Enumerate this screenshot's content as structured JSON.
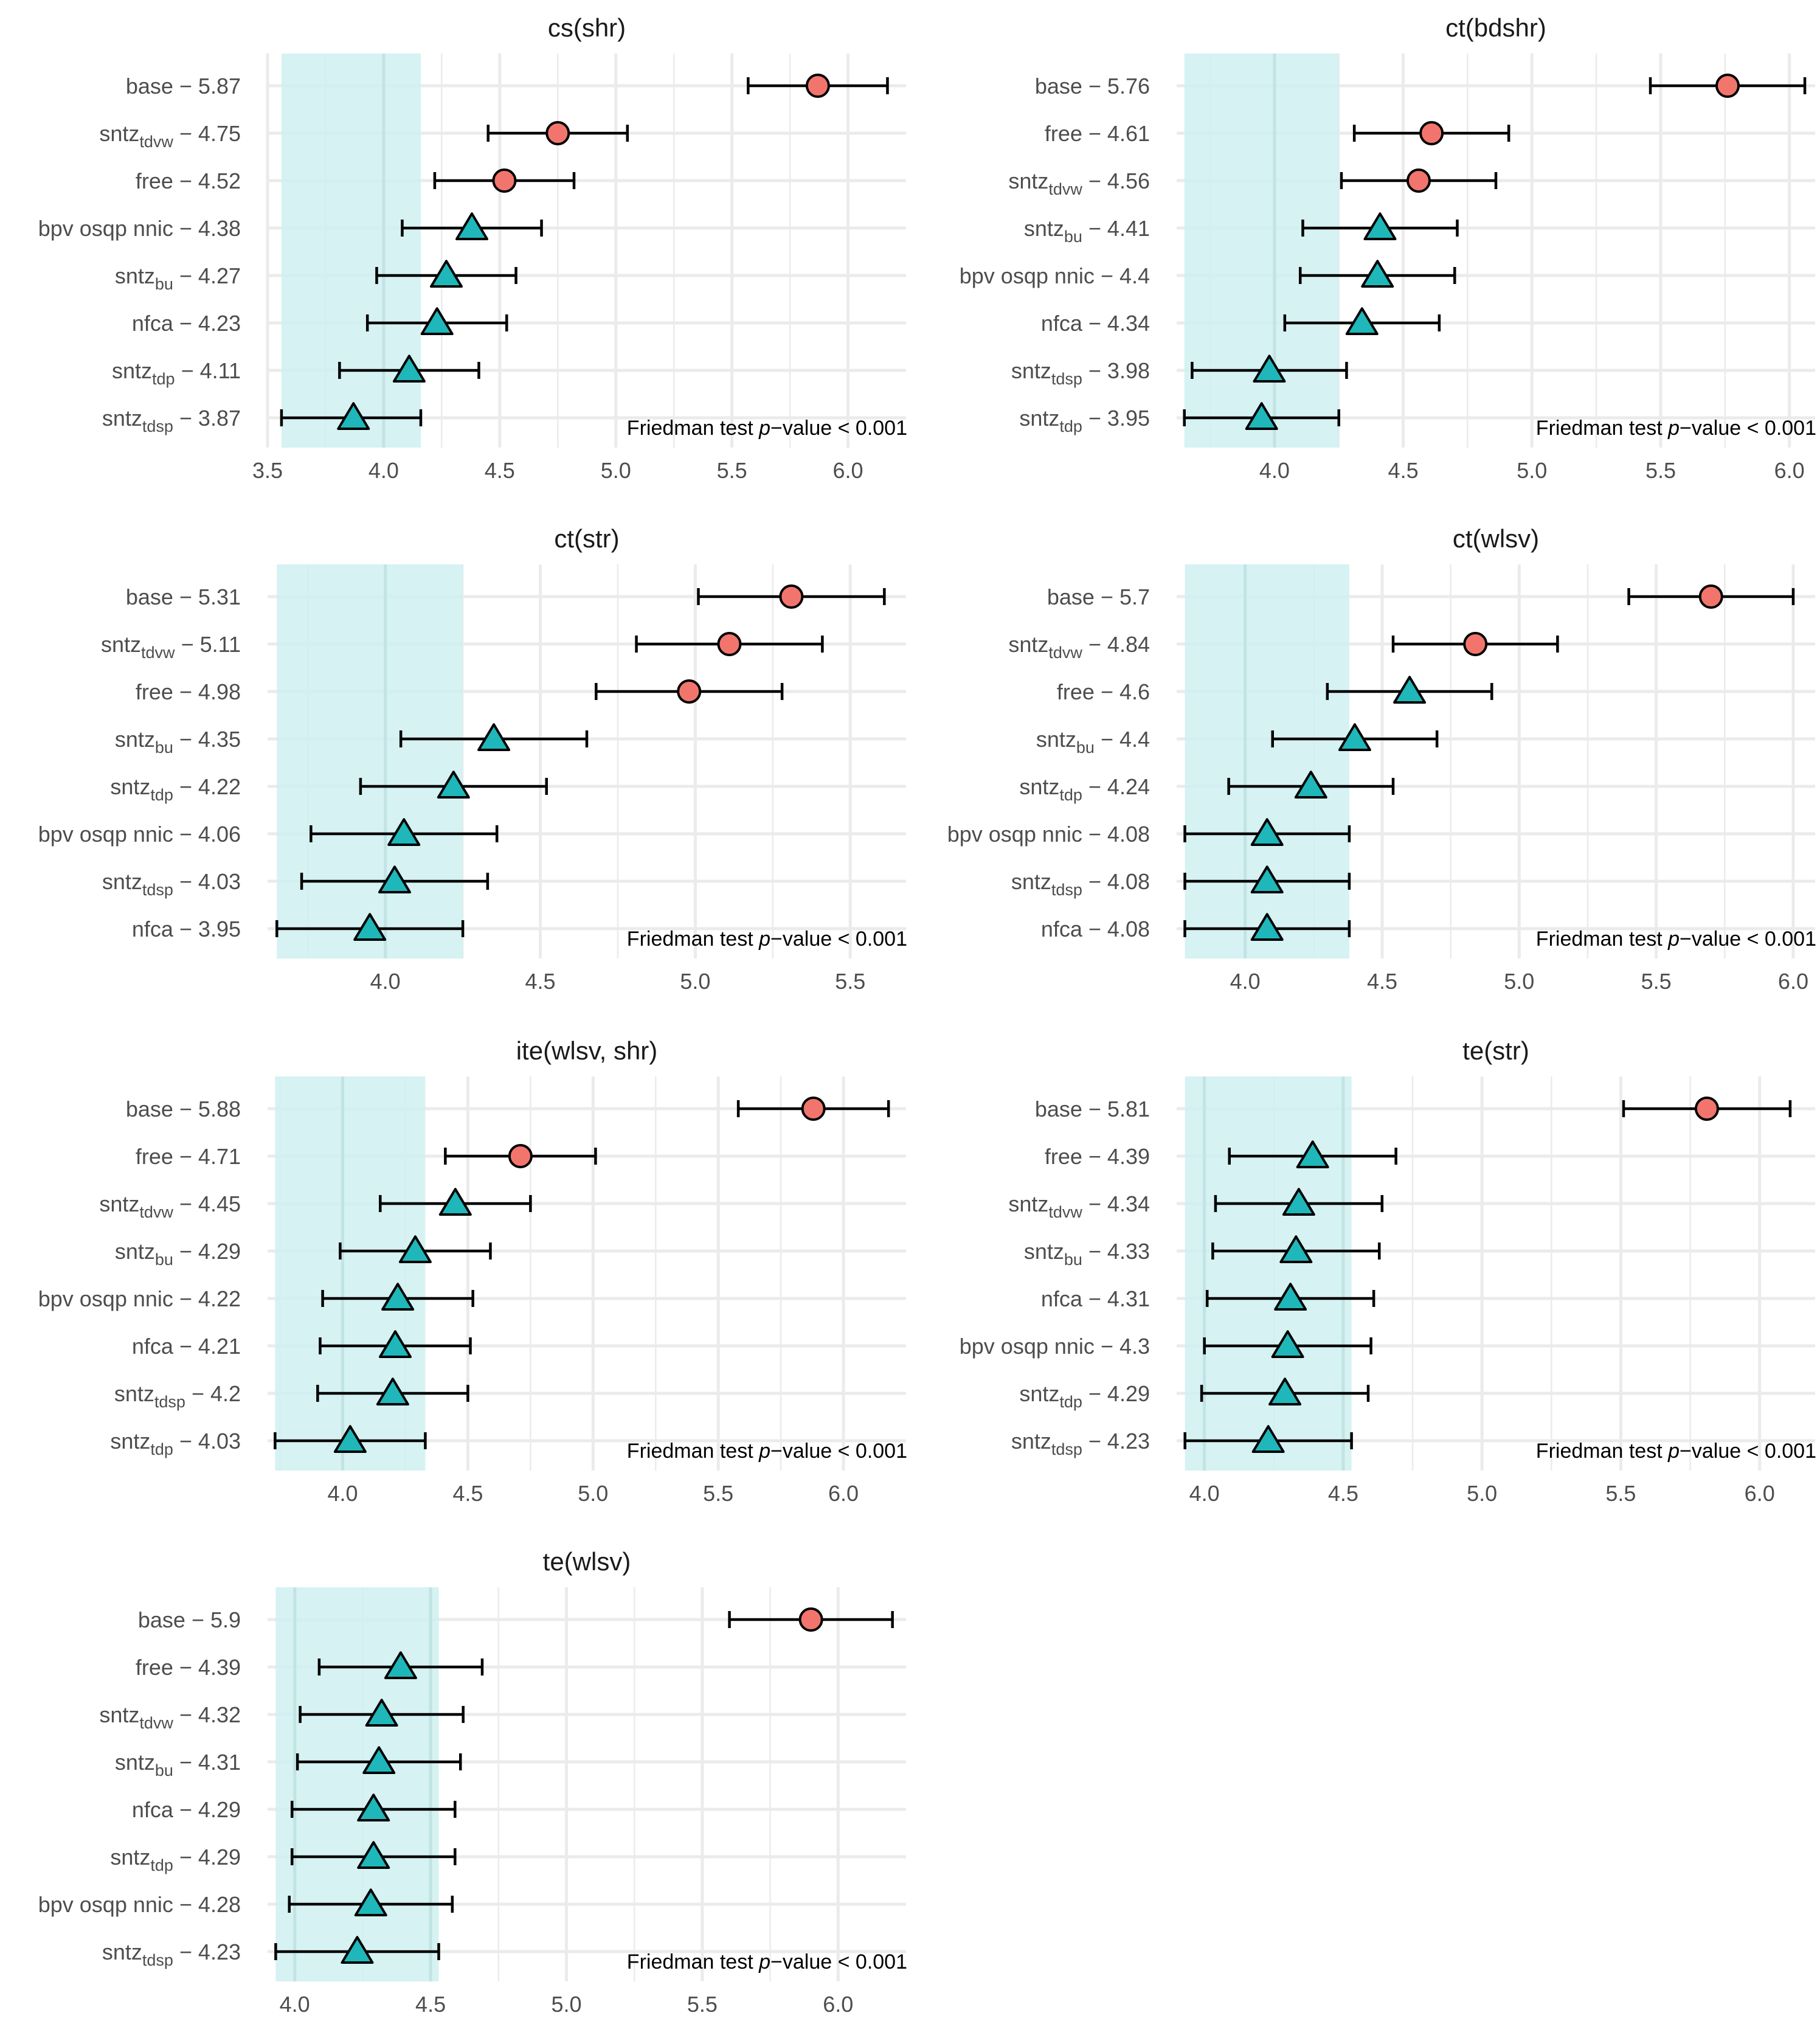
{
  "figure": {
    "type": "panel-grid",
    "footnote_prefix": "Friedman test ",
    "footnote_p": "p",
    "footnote_suffix": "−value < 0.001",
    "colors": {
      "background": "#ffffff",
      "grid": "#ebebeb",
      "band": "#cff0f1",
      "significant": "#f2756d",
      "not_significant": "#1fb7ba",
      "outline": "#000000",
      "label": "#4d4d4d",
      "title": "#1a1a1a"
    },
    "icons": {
      "significant": "circle-marker",
      "not_significant": "triangle-marker"
    }
  },
  "chart_data": [
    {
      "type": "scatter",
      "title": "cs(shr)",
      "xlim": [
        3.5,
        6.25
      ],
      "xticks": [
        3.5,
        4.0,
        4.5,
        5.0,
        5.5,
        6.0
      ],
      "xtick_labels": [
        "3.5",
        "4.0",
        "4.5",
        "5.0",
        "5.5",
        "6.0"
      ],
      "band": [
        3.56,
        4.16
      ],
      "footnote": "Friedman test p−value < 0.001",
      "rows": [
        {
          "method": "base",
          "sub": "",
          "value": "5.87",
          "mean": 5.87,
          "lo": 5.57,
          "hi": 6.17,
          "shape": "circle"
        },
        {
          "method": "sntz",
          "sub": "tdvw",
          "value": "4.75",
          "mean": 4.75,
          "lo": 4.45,
          "hi": 5.05,
          "shape": "circle"
        },
        {
          "method": "free",
          "sub": "",
          "value": "4.52",
          "mean": 4.52,
          "lo": 4.22,
          "hi": 4.82,
          "shape": "circle"
        },
        {
          "method": "bpv osqp nnic",
          "sub": "",
          "value": "4.38",
          "mean": 4.38,
          "lo": 4.08,
          "hi": 4.68,
          "shape": "triangle"
        },
        {
          "method": "sntz",
          "sub": "bu",
          "value": "4.27",
          "mean": 4.27,
          "lo": 3.97,
          "hi": 4.57,
          "shape": "triangle"
        },
        {
          "method": "nfca",
          "sub": "",
          "value": "4.23",
          "mean": 4.23,
          "lo": 3.93,
          "hi": 4.53,
          "shape": "triangle"
        },
        {
          "method": "sntz",
          "sub": "tdp",
          "value": "4.11",
          "mean": 4.11,
          "lo": 3.81,
          "hi": 4.41,
          "shape": "triangle"
        },
        {
          "method": "sntz",
          "sub": "tdsp",
          "value": "3.87",
          "mean": 3.87,
          "lo": 3.56,
          "hi": 4.16,
          "shape": "triangle"
        }
      ]
    },
    {
      "type": "scatter",
      "title": "ct(bdshr)",
      "xlim": [
        3.62,
        6.1
      ],
      "xticks": [
        4.0,
        4.5,
        5.0,
        5.5,
        6.0
      ],
      "xtick_labels": [
        "4.0",
        "4.5",
        "5.0",
        "5.5",
        "6.0"
      ],
      "band": [
        3.65,
        4.25
      ],
      "footnote": "Friedman test p−value < 0.001",
      "rows": [
        {
          "method": "base",
          "sub": "",
          "value": "5.76",
          "mean": 5.76,
          "lo": 5.46,
          "hi": 6.06,
          "shape": "circle"
        },
        {
          "method": "free",
          "sub": "",
          "value": "4.61",
          "mean": 4.61,
          "lo": 4.31,
          "hi": 4.91,
          "shape": "circle"
        },
        {
          "method": "sntz",
          "sub": "tdvw",
          "value": "4.56",
          "mean": 4.56,
          "lo": 4.26,
          "hi": 4.86,
          "shape": "circle"
        },
        {
          "method": "sntz",
          "sub": "bu",
          "value": "4.41",
          "mean": 4.41,
          "lo": 4.11,
          "hi": 4.71,
          "shape": "triangle"
        },
        {
          "method": "bpv osqp nnic",
          "sub": "",
          "value": "4.4",
          "mean": 4.4,
          "lo": 4.1,
          "hi": 4.7,
          "shape": "triangle"
        },
        {
          "method": "nfca",
          "sub": "",
          "value": "4.34",
          "mean": 4.34,
          "lo": 4.04,
          "hi": 4.64,
          "shape": "triangle"
        },
        {
          "method": "sntz",
          "sub": "tdsp",
          "value": "3.98",
          "mean": 3.98,
          "lo": 3.68,
          "hi": 4.28,
          "shape": "triangle"
        },
        {
          "method": "sntz",
          "sub": "tdp",
          "value": "3.95",
          "mean": 3.95,
          "lo": 3.65,
          "hi": 4.25,
          "shape": "triangle"
        }
      ]
    },
    {
      "type": "scatter",
      "title": "ct(str)",
      "xlim": [
        3.62,
        5.68
      ],
      "xticks": [
        4.0,
        4.5,
        5.0,
        5.5
      ],
      "xtick_labels": [
        "4.0",
        "4.5",
        "5.0",
        "5.5"
      ],
      "band": [
        3.65,
        4.25
      ],
      "footnote": "Friedman test p−value < 0.001",
      "rows": [
        {
          "method": "base",
          "sub": "",
          "value": "5.31",
          "mean": 5.31,
          "lo": 5.01,
          "hi": 5.61,
          "shape": "circle"
        },
        {
          "method": "sntz",
          "sub": "tdvw",
          "value": "5.11",
          "mean": 5.11,
          "lo": 4.81,
          "hi": 5.41,
          "shape": "circle"
        },
        {
          "method": "free",
          "sub": "",
          "value": "4.98",
          "mean": 4.98,
          "lo": 4.68,
          "hi": 5.28,
          "shape": "circle"
        },
        {
          "method": "sntz",
          "sub": "bu",
          "value": "4.35",
          "mean": 4.35,
          "lo": 4.05,
          "hi": 4.65,
          "shape": "triangle"
        },
        {
          "method": "sntz",
          "sub": "tdp",
          "value": "4.22",
          "mean": 4.22,
          "lo": 3.92,
          "hi": 4.52,
          "shape": "triangle"
        },
        {
          "method": "bpv osqp nnic",
          "sub": "",
          "value": "4.06",
          "mean": 4.06,
          "lo": 3.76,
          "hi": 4.36,
          "shape": "triangle"
        },
        {
          "method": "sntz",
          "sub": "tdsp",
          "value": "4.03",
          "mean": 4.03,
          "lo": 3.73,
          "hi": 4.33,
          "shape": "triangle"
        },
        {
          "method": "nfca",
          "sub": "",
          "value": "3.95",
          "mean": 3.95,
          "lo": 3.65,
          "hi": 4.25,
          "shape": "triangle"
        }
      ]
    },
    {
      "type": "scatter",
      "title": "ct(wlsv)",
      "xlim": [
        3.75,
        6.08
      ],
      "xticks": [
        4.0,
        4.5,
        5.0,
        5.5,
        6.0
      ],
      "xtick_labels": [
        "4.0",
        "4.5",
        "5.0",
        "5.5",
        "6.0"
      ],
      "band": [
        3.78,
        4.38
      ],
      "footnote": "Friedman test p−value < 0.001",
      "rows": [
        {
          "method": "base",
          "sub": "",
          "value": "5.7",
          "mean": 5.7,
          "lo": 5.4,
          "hi": 6.0,
          "shape": "circle"
        },
        {
          "method": "sntz",
          "sub": "tdvw",
          "value": "4.84",
          "mean": 4.84,
          "lo": 4.54,
          "hi": 5.14,
          "shape": "circle"
        },
        {
          "method": "free",
          "sub": "",
          "value": "4.6",
          "mean": 4.6,
          "lo": 4.3,
          "hi": 4.9,
          "shape": "triangle"
        },
        {
          "method": "sntz",
          "sub": "bu",
          "value": "4.4",
          "mean": 4.4,
          "lo": 4.1,
          "hi": 4.7,
          "shape": "triangle"
        },
        {
          "method": "sntz",
          "sub": "tdp",
          "value": "4.24",
          "mean": 4.24,
          "lo": 3.94,
          "hi": 4.54,
          "shape": "triangle"
        },
        {
          "method": "bpv osqp nnic",
          "sub": "",
          "value": "4.08",
          "mean": 4.08,
          "lo": 3.78,
          "hi": 4.38,
          "shape": "triangle"
        },
        {
          "method": "sntz",
          "sub": "tdsp",
          "value": "4.08",
          "mean": 4.08,
          "lo": 3.78,
          "hi": 4.38,
          "shape": "triangle"
        },
        {
          "method": "nfca",
          "sub": "",
          "value": "4.08",
          "mean": 4.08,
          "lo": 3.78,
          "hi": 4.38,
          "shape": "triangle"
        }
      ]
    },
    {
      "type": "scatter",
      "title": "ite(wlsv, shr)",
      "xlim": [
        3.7,
        6.25
      ],
      "xticks": [
        4.0,
        4.5,
        5.0,
        5.5,
        6.0
      ],
      "xtick_labels": [
        "4.0",
        "4.5",
        "5.0",
        "5.5",
        "6.0"
      ],
      "band": [
        3.73,
        4.33
      ],
      "footnote": "Friedman test p−value < 0.001",
      "rows": [
        {
          "method": "base",
          "sub": "",
          "value": "5.88",
          "mean": 5.88,
          "lo": 5.58,
          "hi": 6.18,
          "shape": "circle"
        },
        {
          "method": "free",
          "sub": "",
          "value": "4.71",
          "mean": 4.71,
          "lo": 4.41,
          "hi": 5.01,
          "shape": "circle"
        },
        {
          "method": "sntz",
          "sub": "tdvw",
          "value": "4.45",
          "mean": 4.45,
          "lo": 4.15,
          "hi": 4.75,
          "shape": "triangle"
        },
        {
          "method": "sntz",
          "sub": "bu",
          "value": "4.29",
          "mean": 4.29,
          "lo": 3.99,
          "hi": 4.59,
          "shape": "triangle"
        },
        {
          "method": "bpv osqp nnic",
          "sub": "",
          "value": "4.22",
          "mean": 4.22,
          "lo": 3.92,
          "hi": 4.52,
          "shape": "triangle"
        },
        {
          "method": "nfca",
          "sub": "",
          "value": "4.21",
          "mean": 4.21,
          "lo": 3.91,
          "hi": 4.51,
          "shape": "triangle"
        },
        {
          "method": "sntz",
          "sub": "tdsp",
          "value": "4.2",
          "mean": 4.2,
          "lo": 3.9,
          "hi": 4.5,
          "shape": "triangle"
        },
        {
          "method": "sntz",
          "sub": "tdp",
          "value": "4.03",
          "mean": 4.03,
          "lo": 3.73,
          "hi": 4.33,
          "shape": "triangle"
        }
      ]
    },
    {
      "type": "scatter",
      "title": "te(str)",
      "xlim": [
        3.9,
        6.2
      ],
      "xticks": [
        4.0,
        4.5,
        5.0,
        5.5,
        6.0
      ],
      "xtick_labels": [
        "4.0",
        "4.5",
        "5.0",
        "5.5",
        "6.0"
      ],
      "band": [
        3.93,
        4.53
      ],
      "footnote": "Friedman test p−value < 0.001",
      "rows": [
        {
          "method": "base",
          "sub": "",
          "value": "5.81",
          "mean": 5.81,
          "lo": 5.51,
          "hi": 6.11,
          "shape": "circle"
        },
        {
          "method": "free",
          "sub": "",
          "value": "4.39",
          "mean": 4.39,
          "lo": 4.09,
          "hi": 4.69,
          "shape": "triangle"
        },
        {
          "method": "sntz",
          "sub": "tdvw",
          "value": "4.34",
          "mean": 4.34,
          "lo": 4.04,
          "hi": 4.64,
          "shape": "triangle"
        },
        {
          "method": "sntz",
          "sub": "bu",
          "value": "4.33",
          "mean": 4.33,
          "lo": 4.03,
          "hi": 4.63,
          "shape": "triangle"
        },
        {
          "method": "nfca",
          "sub": "",
          "value": "4.31",
          "mean": 4.31,
          "lo": 4.01,
          "hi": 4.61,
          "shape": "triangle"
        },
        {
          "method": "bpv osqp nnic",
          "sub": "",
          "value": "4.3",
          "mean": 4.3,
          "lo": 4.0,
          "hi": 4.6,
          "shape": "triangle"
        },
        {
          "method": "sntz",
          "sub": "tdp",
          "value": "4.29",
          "mean": 4.29,
          "lo": 3.99,
          "hi": 4.59,
          "shape": "triangle"
        },
        {
          "method": "sntz",
          "sub": "tdsp",
          "value": "4.23",
          "mean": 4.23,
          "lo": 3.93,
          "hi": 4.53,
          "shape": "triangle"
        }
      ]
    },
    {
      "type": "scatter",
      "title": "te(wlsv)",
      "xlim": [
        3.9,
        6.25
      ],
      "xticks": [
        4.0,
        4.5,
        5.0,
        5.5,
        6.0
      ],
      "xtick_labels": [
        "4.0",
        "4.5",
        "5.0",
        "5.5",
        "6.0"
      ],
      "band": [
        3.93,
        4.53
      ],
      "footnote": "Friedman test p−value < 0.001",
      "rows": [
        {
          "method": "base",
          "sub": "",
          "value": "5.9",
          "mean": 5.9,
          "lo": 5.6,
          "hi": 6.2,
          "shape": "circle"
        },
        {
          "method": "free",
          "sub": "",
          "value": "4.39",
          "mean": 4.39,
          "lo": 4.09,
          "hi": 4.69,
          "shape": "triangle"
        },
        {
          "method": "sntz",
          "sub": "tdvw",
          "value": "4.32",
          "mean": 4.32,
          "lo": 4.02,
          "hi": 4.62,
          "shape": "triangle"
        },
        {
          "method": "sntz",
          "sub": "bu",
          "value": "4.31",
          "mean": 4.31,
          "lo": 4.01,
          "hi": 4.61,
          "shape": "triangle"
        },
        {
          "method": "nfca",
          "sub": "",
          "value": "4.29",
          "mean": 4.29,
          "lo": 3.99,
          "hi": 4.59,
          "shape": "triangle"
        },
        {
          "method": "sntz",
          "sub": "tdp",
          "value": "4.29",
          "mean": 4.29,
          "lo": 3.99,
          "hi": 4.59,
          "shape": "triangle"
        },
        {
          "method": "bpv osqp nnic",
          "sub": "",
          "value": "4.28",
          "mean": 4.28,
          "lo": 3.98,
          "hi": 4.58,
          "shape": "triangle"
        },
        {
          "method": "sntz",
          "sub": "tdsp",
          "value": "4.23",
          "mean": 4.23,
          "lo": 3.93,
          "hi": 4.53,
          "shape": "triangle"
        }
      ]
    }
  ]
}
